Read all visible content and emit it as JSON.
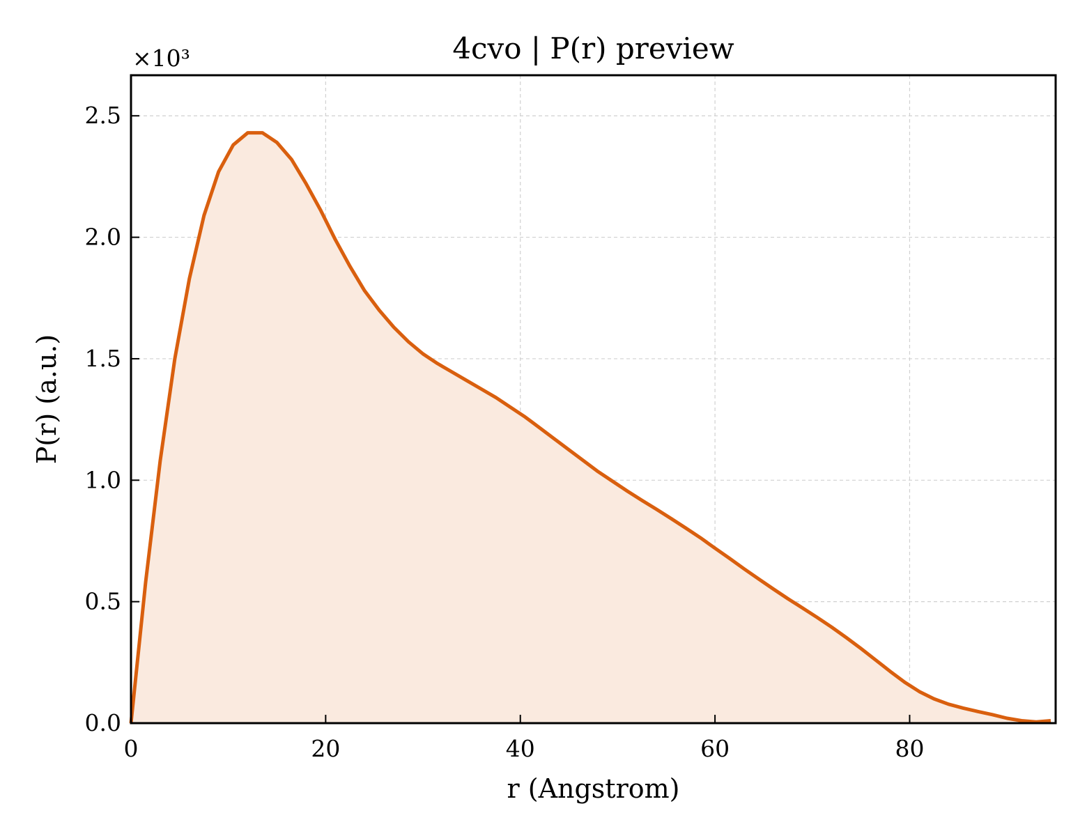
{
  "chart_data": {
    "type": "area",
    "title": "4cvo | P(r) preview",
    "xlabel": "r (Angstrom)",
    "ylabel": "P(r) (a.u.)",
    "y_multiplier_label": "×10³",
    "xlim": [
      0,
      95
    ],
    "ylim": [
      0,
      2.667
    ],
    "xticks": [
      0,
      20,
      40,
      60,
      80
    ],
    "xtick_labels": [
      "0",
      "20",
      "40",
      "60",
      "80"
    ],
    "yticks": [
      0,
      0.5,
      1.0,
      1.5,
      2.0,
      2.5
    ],
    "ytick_labels": [
      "0.0",
      "0.5",
      "1.0",
      "1.5",
      "2.0",
      "2.5"
    ],
    "grid": true,
    "line_color": "#d95f0e",
    "fill_color": "#faeadf",
    "series": [
      {
        "x": [
          0,
          1.5,
          3,
          4.5,
          6,
          7.5,
          9,
          10.5,
          12,
          13.5,
          15,
          16.5,
          18,
          19.5,
          21,
          22.5,
          24,
          25.5,
          27,
          28.5,
          30,
          31.5,
          33,
          34.5,
          36,
          37.5,
          39,
          40.5,
          42,
          43.5,
          45,
          46.5,
          48,
          49.5,
          51,
          52.5,
          54,
          55.5,
          57,
          58.5,
          60,
          61.5,
          63,
          64.5,
          66,
          67.5,
          69,
          70.5,
          72,
          73.5,
          75,
          76.5,
          78,
          79.5,
          81,
          82.5,
          84,
          85.5,
          87,
          88.5,
          90,
          91.5,
          93,
          94.5
        ],
        "values": [
          0,
          0.58,
          1.08,
          1.5,
          1.83,
          2.09,
          2.27,
          2.38,
          2.43,
          2.43,
          2.39,
          2.32,
          2.22,
          2.11,
          1.99,
          1.88,
          1.78,
          1.7,
          1.63,
          1.57,
          1.52,
          1.48,
          1.445,
          1.41,
          1.375,
          1.34,
          1.3,
          1.26,
          1.215,
          1.17,
          1.125,
          1.08,
          1.035,
          0.995,
          0.955,
          0.917,
          0.88,
          0.842,
          0.803,
          0.763,
          0.72,
          0.678,
          0.635,
          0.593,
          0.552,
          0.512,
          0.474,
          0.435,
          0.395,
          0.352,
          0.307,
          0.26,
          0.213,
          0.168,
          0.13,
          0.1,
          0.078,
          0.062,
          0.048,
          0.035,
          0.02,
          0.01,
          0.005,
          0.01
        ]
      }
    ]
  }
}
